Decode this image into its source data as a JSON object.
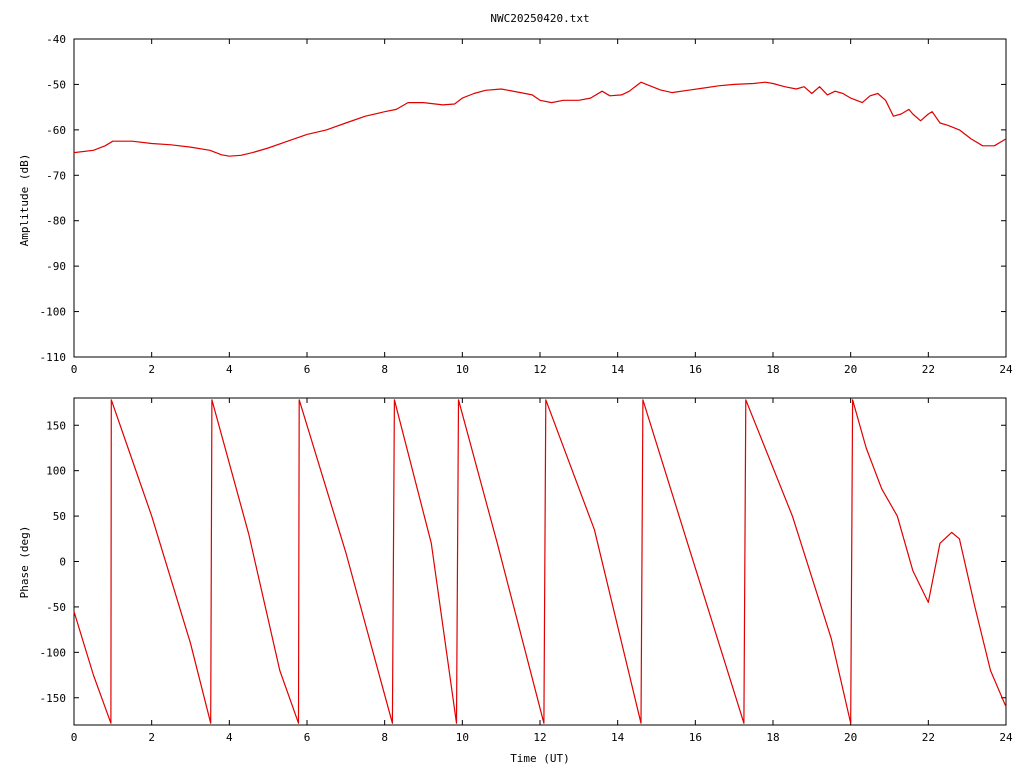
{
  "chart_data": [
    {
      "type": "line",
      "title": "NWC20250420.txt",
      "xlabel": "",
      "ylabel": "Amplitude (dB)",
      "xlim": [
        0,
        24
      ],
      "ylim": [
        -110,
        -40
      ],
      "xticks": [
        "0",
        "2",
        "4",
        "6",
        "8",
        "10",
        "12",
        "14",
        "16",
        "18",
        "20",
        "22",
        "24"
      ],
      "yticks": [
        "-40",
        "-50",
        "-60",
        "-70",
        "-80",
        "-90",
        "-100",
        "-110"
      ],
      "color": "#e00000",
      "series": [
        {
          "x": [
            0,
            0.5,
            0.8,
            1.0,
            1.5,
            2.0,
            2.5,
            3.0,
            3.5,
            3.8,
            4.0,
            4.3,
            4.6,
            5.0,
            5.5,
            6.0,
            6.5,
            7.0,
            7.5,
            8.0,
            8.3,
            8.6,
            9.0,
            9.5,
            9.8,
            10.0,
            10.3,
            10.6,
            11.0,
            11.5,
            11.8,
            12.0,
            12.3,
            12.6,
            13.0,
            13.3,
            13.6,
            13.8,
            14.1,
            14.3,
            14.6,
            14.8,
            15.1,
            15.4,
            15.8,
            16.2,
            16.6,
            17.0,
            17.5,
            17.8,
            18.0,
            18.3,
            18.6,
            18.8,
            19.0,
            19.2,
            19.4,
            19.6,
            19.8,
            20.0,
            20.3,
            20.5,
            20.7,
            20.9,
            21.1,
            21.3,
            21.5,
            21.6,
            21.8,
            22.0,
            22.1,
            22.3,
            22.5,
            22.8,
            23.1,
            23.4,
            23.7,
            24.0
          ],
          "y": [
            -65,
            -64.5,
            -63.5,
            -62.5,
            -62.5,
            -63,
            -63.3,
            -63.8,
            -64.5,
            -65.5,
            -65.8,
            -65.6,
            -65,
            -64,
            -62.5,
            -61,
            -60,
            -58.5,
            -57,
            -56,
            -55.5,
            -54,
            -54,
            -54.5,
            -54.3,
            -53,
            -52,
            -51.3,
            -51,
            -51.8,
            -52.3,
            -53.5,
            -54,
            -53.5,
            -53.5,
            -53,
            -51.5,
            -52.5,
            -52.3,
            -51.5,
            -49.5,
            -50.2,
            -51.2,
            -51.8,
            -51.3,
            -50.8,
            -50.3,
            -50,
            -49.8,
            -49.5,
            -49.8,
            -50.5,
            -51,
            -50.5,
            -52,
            -50.5,
            -52.3,
            -51.5,
            -52,
            -53,
            -54,
            -52.5,
            -52,
            -53.5,
            -57,
            -56.5,
            -55.5,
            -56.5,
            -58,
            -56.5,
            -56,
            -58.5,
            -59,
            -60,
            -62,
            -63.5,
            -63.5,
            -62
          ]
        }
      ]
    },
    {
      "type": "line",
      "title": "",
      "xlabel": "Time (UT)",
      "ylabel": "Phase (deg)",
      "xlim": [
        0,
        24
      ],
      "ylim": [
        -180,
        180
      ],
      "xticks": [
        "0",
        "2",
        "4",
        "6",
        "8",
        "10",
        "12",
        "14",
        "16",
        "18",
        "20",
        "22",
        "24"
      ],
      "yticks": [
        "150",
        "100",
        "50",
        "0",
        "-50",
        "-100",
        "-150"
      ],
      "color": "#e00000",
      "series": [
        {
          "x": [
            0,
            0.5,
            0.95,
            0.96,
            2.0,
            3.0,
            3.52,
            3.55,
            4.5,
            5.3,
            5.78,
            5.8,
            7.0,
            8.2,
            8.25,
            9.2,
            9.85,
            9.9,
            10.9,
            12.1,
            12.15,
            13.4,
            14.6,
            14.65,
            15.8,
            17.25,
            17.3,
            18.5,
            19.5,
            20.0,
            20.05,
            20.4,
            20.8,
            21.2,
            21.6,
            22.0,
            22.3,
            22.6,
            22.8,
            23.2,
            23.6,
            24.0
          ],
          "y": [
            -55,
            -125,
            -178,
            178,
            50,
            -90,
            -178,
            178,
            30,
            -120,
            -178,
            178,
            10,
            -178,
            178,
            20,
            -178,
            178,
            20,
            -178,
            178,
            35,
            -178,
            178,
            20,
            -178,
            178,
            50,
            -85,
            -178,
            178,
            125,
            80,
            50,
            -10,
            -45,
            20,
            32,
            25,
            -50,
            -120,
            -160
          ]
        }
      ]
    }
  ]
}
